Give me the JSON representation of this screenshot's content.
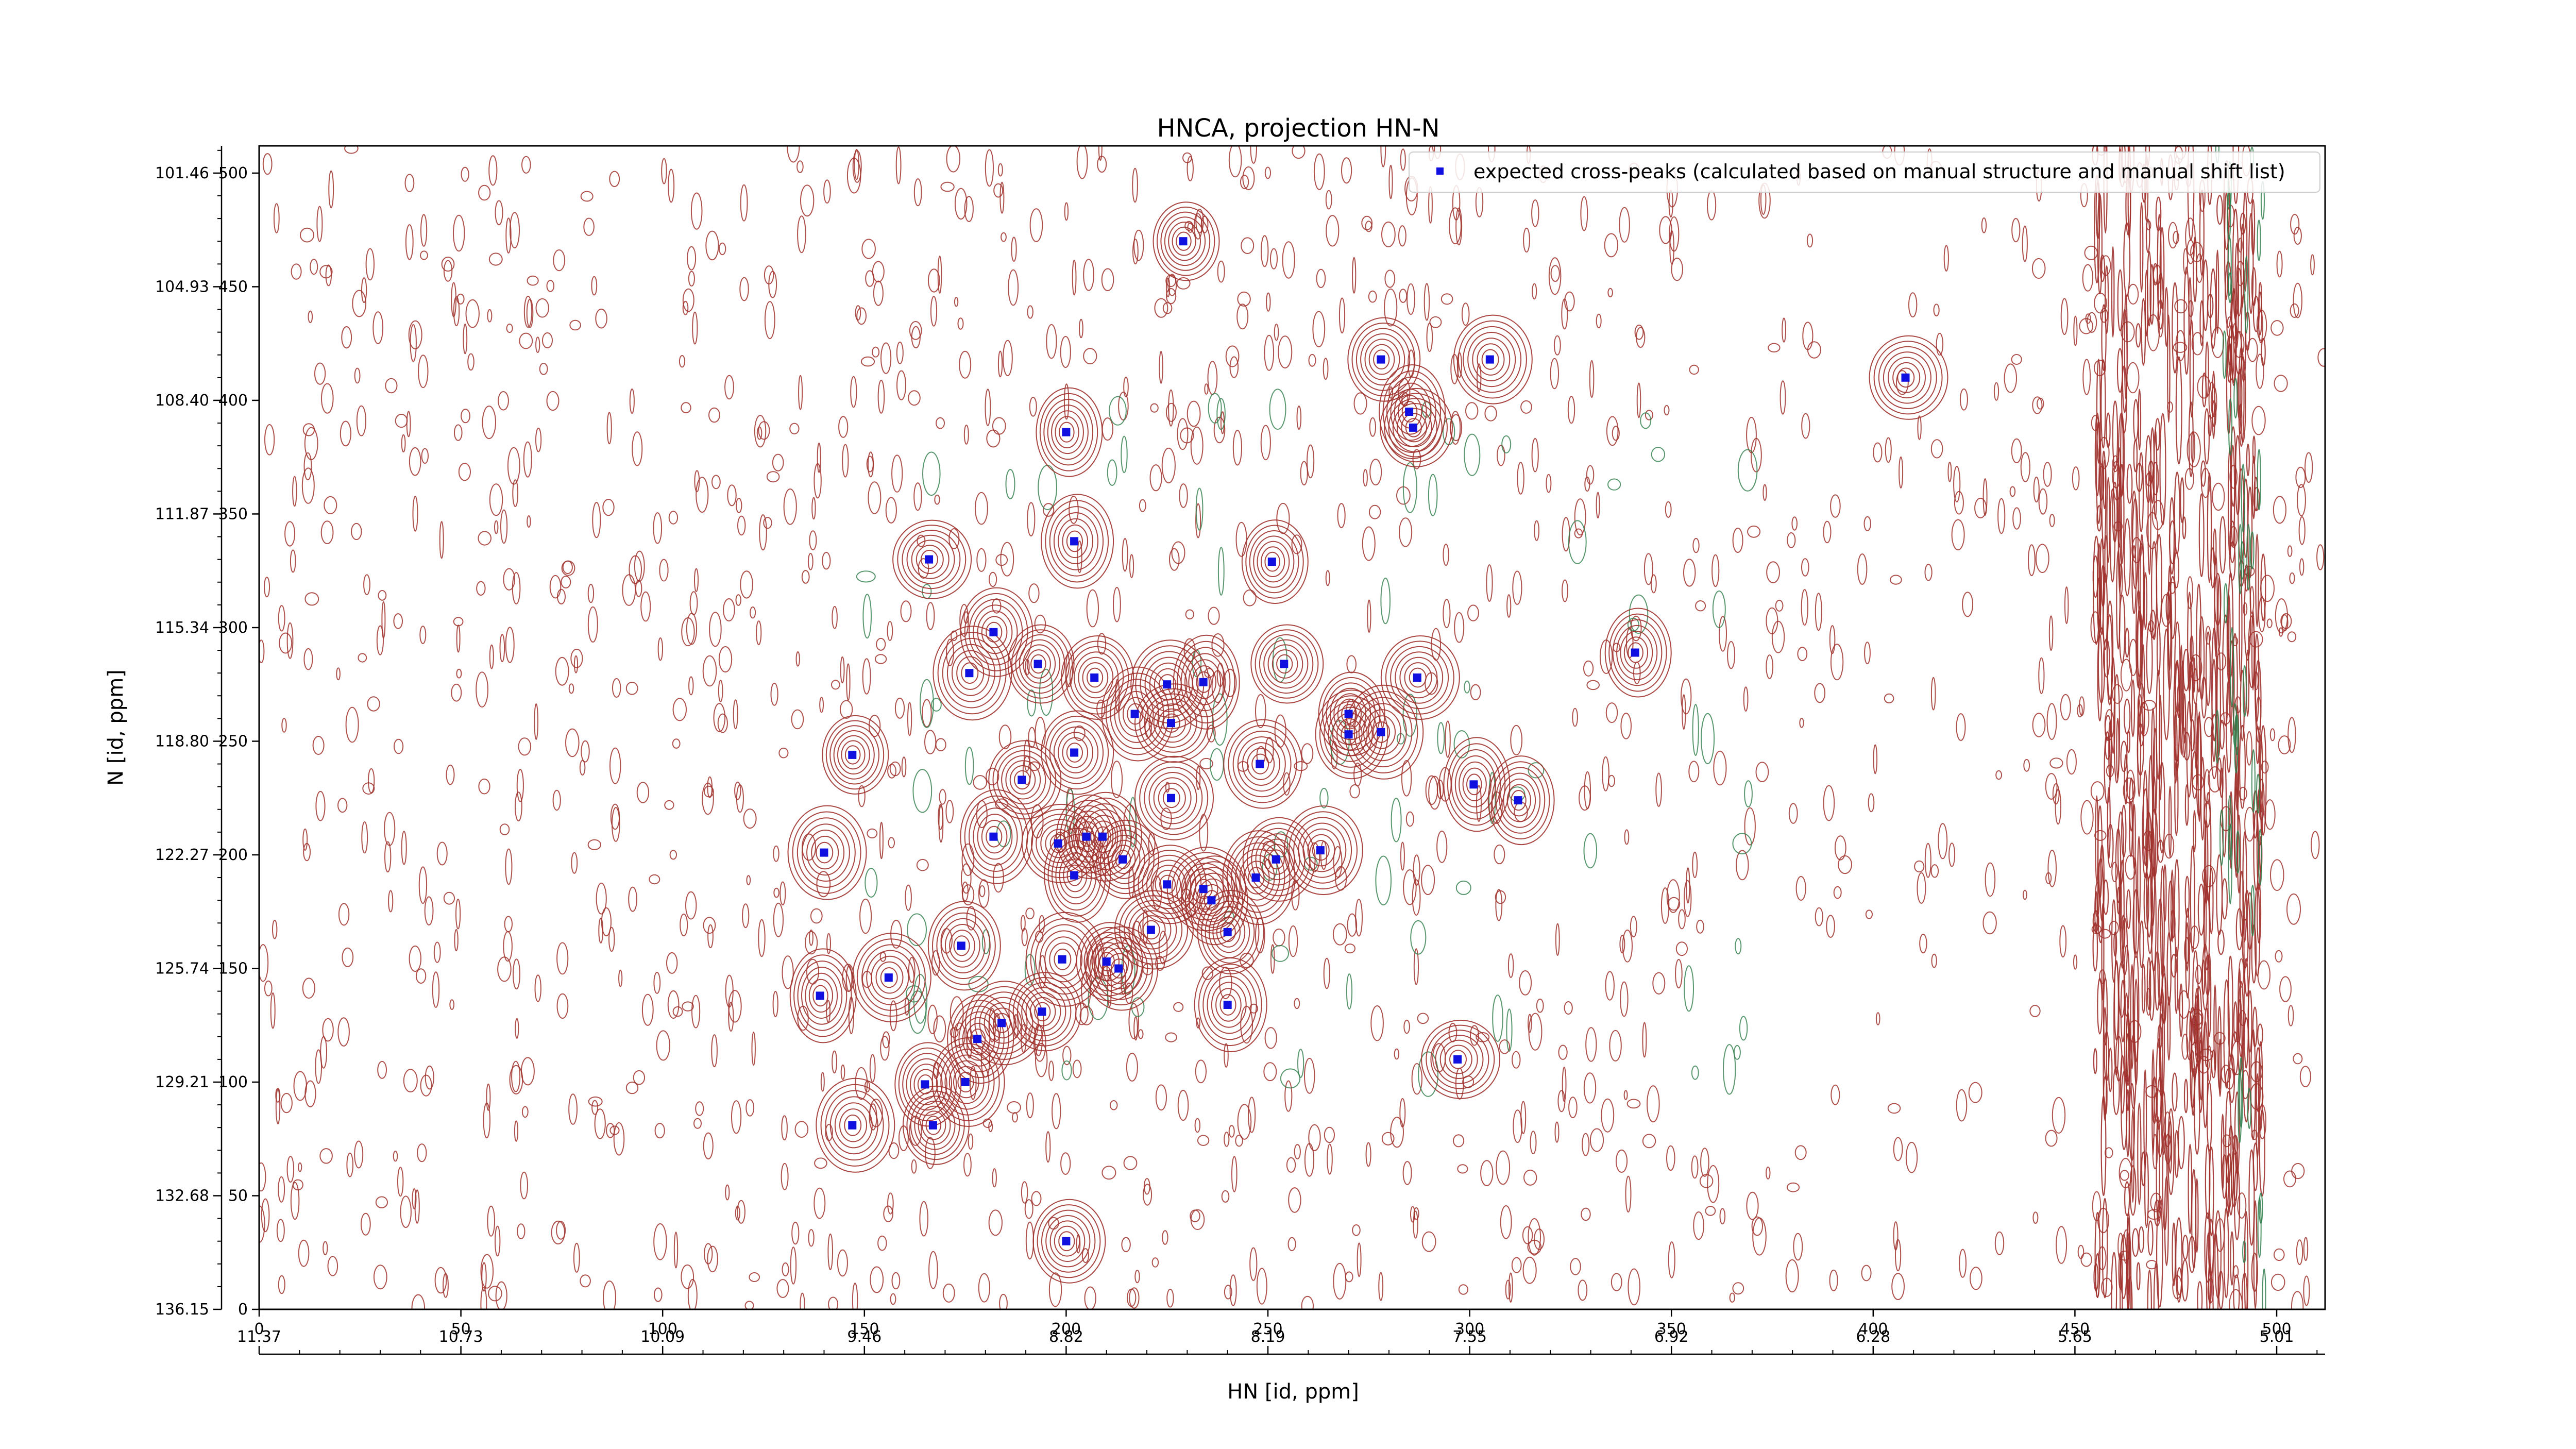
{
  "chart_data": {
    "type": "scatter",
    "title": "HNCA, projection HN-N",
    "xlabel": "HN [id, ppm]",
    "ylabel": "N [id, ppm]",
    "x_index_range": [
      0,
      512
    ],
    "y_index_range": [
      0,
      512
    ],
    "x_index_ticks": [
      "0",
      "50",
      "100",
      "150",
      "200",
      "250",
      "300",
      "350",
      "400",
      "450",
      "500"
    ],
    "y_index_ticks": [
      "0",
      "50",
      "100",
      "150",
      "200",
      "250",
      "300",
      "350",
      "400",
      "450",
      "500"
    ],
    "x_ppm_ticks": [
      "11.37",
      "10.73",
      "10.09",
      "9.46",
      "8.82",
      "8.19",
      "7.55",
      "6.92",
      "6.28",
      "5.65",
      "5.01"
    ],
    "y_ppm_ticks": [
      "136.15",
      "132.68",
      "129.21",
      "125.74",
      "122.27",
      "118.80",
      "115.34",
      "111.87",
      "108.40",
      "104.93",
      "101.46"
    ],
    "legend": {
      "position": "top-right",
      "entries": [
        "expected cross-peaks (calculated based on manual structure and manual shift list)"
      ]
    },
    "colors": {
      "contour_positive": "#a0312c",
      "contour_negative": "#2e7d4a",
      "marker": "#1010e0"
    },
    "series": [
      {
        "name": "expected cross-peaks (calculated based on manual structure and manual shift list)",
        "points": [
          [
            229,
            470
          ],
          [
            278,
            418
          ],
          [
            305,
            418
          ],
          [
            285,
            395
          ],
          [
            286,
            388
          ],
          [
            408,
            410
          ],
          [
            200,
            386
          ],
          [
            202,
            338
          ],
          [
            166,
            330
          ],
          [
            251,
            329
          ],
          [
            182,
            298
          ],
          [
            176,
            280
          ],
          [
            193,
            284
          ],
          [
            207,
            278
          ],
          [
            225,
            275
          ],
          [
            234,
            276
          ],
          [
            254,
            284
          ],
          [
            287,
            278
          ],
          [
            341,
            289
          ],
          [
            217,
            262
          ],
          [
            226,
            258
          ],
          [
            270,
            262
          ],
          [
            270,
            253
          ],
          [
            278,
            254
          ],
          [
            147,
            244
          ],
          [
            202,
            245
          ],
          [
            248,
            240
          ],
          [
            301,
            231
          ],
          [
            189,
            233
          ],
          [
            226,
            225
          ],
          [
            312,
            224
          ],
          [
            182,
            208
          ],
          [
            198,
            205
          ],
          [
            205,
            208
          ],
          [
            209,
            208
          ],
          [
            140,
            201
          ],
          [
            214,
            198
          ],
          [
            252,
            198
          ],
          [
            263,
            202
          ],
          [
            202,
            191
          ],
          [
            225,
            187
          ],
          [
            234,
            185
          ],
          [
            236,
            180
          ],
          [
            247,
            190
          ],
          [
            221,
            167
          ],
          [
            240,
            166
          ],
          [
            174,
            160
          ],
          [
            199,
            154
          ],
          [
            210,
            153
          ],
          [
            213,
            150
          ],
          [
            156,
            146
          ],
          [
            139,
            138
          ],
          [
            194,
            131
          ],
          [
            184,
            126
          ],
          [
            178,
            119
          ],
          [
            240,
            134
          ],
          [
            297,
            110
          ],
          [
            165,
            99
          ],
          [
            175,
            100
          ],
          [
            147,
            81
          ],
          [
            167,
            81
          ],
          [
            200,
            30
          ]
        ]
      }
    ]
  }
}
